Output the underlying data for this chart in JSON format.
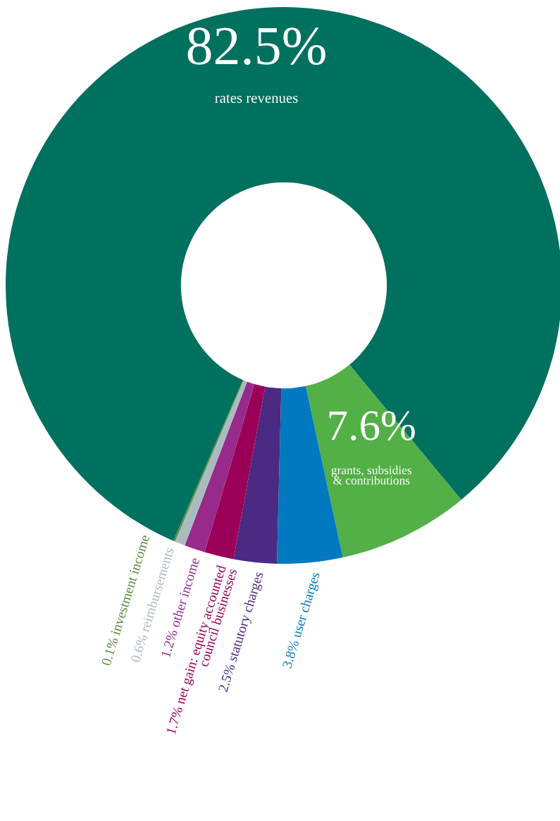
{
  "chart_data": {
    "type": "donut",
    "categories": [
      "rates revenues",
      "grants, subsidies\n& contributions",
      "user charges",
      "statutory charges",
      "net gain: equity accounted\ncouncil businesses",
      "other income",
      "reimbursements",
      "investment income"
    ],
    "values": [
      82.5,
      7.6,
      3.8,
      2.5,
      1.7,
      1.2,
      0.6,
      0.1
    ],
    "value_labels": [
      "82.5%",
      "7.6%",
      "3.8%",
      "2.5%",
      "1.7%",
      "1.2%",
      "0.6%",
      "0.1%"
    ],
    "colors": [
      "#00705f",
      "#52b046",
      "#0079c1",
      "#4a2a82",
      "#9b0058",
      "#982a8c",
      "#a8bcc0",
      "#5a8a3a"
    ],
    "legend": false
  }
}
